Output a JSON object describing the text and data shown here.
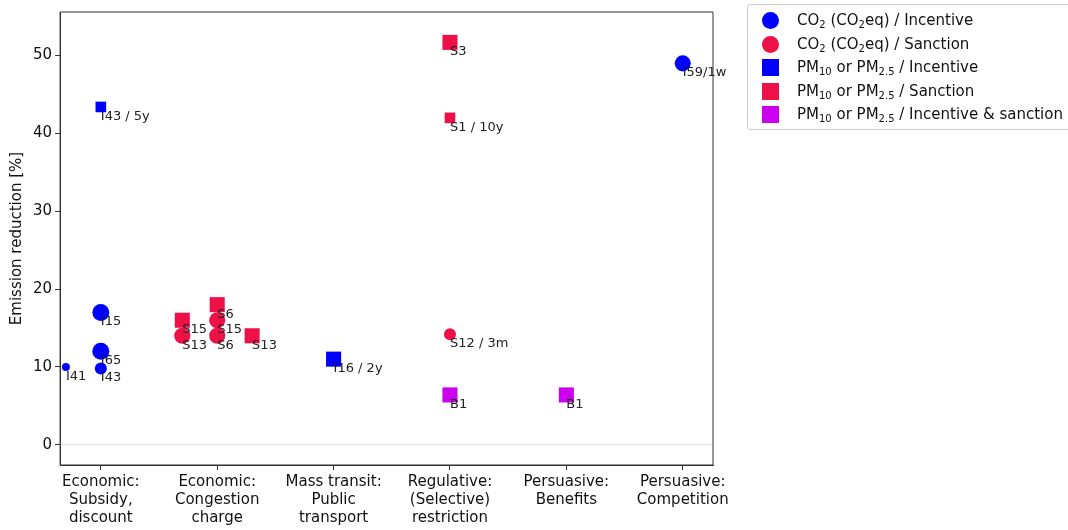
{
  "chart_data": {
    "type": "bubble",
    "categories": [
      "Economic:\nSubsidy,\ndiscount",
      "Economic:\nCongestion\ncharge",
      "Mass transit:\nPublic\ntransport",
      "Regulative:\n(Selective)\nrestriction",
      "Persuasive:\nBenefits",
      "Persuasive:\nCompetition"
    ],
    "ylabel": "Emission reduction [%]",
    "ylim": [
      -2.6,
      55.6
    ],
    "yticks": [
      0,
      10,
      20,
      30,
      40,
      50
    ],
    "grid": false,
    "legend": "top right",
    "ref_lines": [
      {
        "axis": "y",
        "value": 0,
        "color": "#e0e0e0"
      }
    ],
    "series": [
      {
        "name": "CO$_{2}$ (CO$_{2}$eq) / Incentive",
        "color": "#0000ff",
        "marker": "circle",
        "x": [
          "Economic:\nSubsidy,\ndiscount",
          "Economic:\nSubsidy,\ndiscount",
          "Economic:\nSubsidy,\ndiscount",
          "Economic:\nSubsidy,\ndiscount",
          "Persuasive:\nCompetition"
        ],
        "values": [
          17,
          12,
          9.8,
          10,
          49
        ],
        "sizes": [
          1,
          1,
          0.5,
          0.22,
          0.9
        ],
        "value_labels": [
          "I15",
          "I65",
          "I43",
          "I41",
          "I59/1w"
        ]
      },
      {
        "name": "CO$_{2}$ (CO$_{2}$eq) / Sanction",
        "color": "#ee1148",
        "marker": "circle",
        "x": [
          "Economic:\nCongestion\ncharge",
          "Economic:\nCongestion\ncharge",
          "Economic:\nCongestion\ncharge",
          "Regulative:\n(Selective)\nrestriction"
        ],
        "values": [
          16,
          14,
          14,
          14.2
        ],
        "sizes": [
          0.9,
          0.9,
          0.9,
          0.5
        ],
        "value_labels": [
          "S15",
          "S6",
          "S13",
          "S12 / 3m"
        ]
      },
      {
        "name": "PM$_{10}$ or PM$_{2.5}$ / Incentive",
        "color": "#0000ff",
        "marker": "square",
        "x": [
          "Economic:\nSubsidy,\ndiscount",
          "Mass transit:\nPublic\ntransport"
        ],
        "values": [
          43.4,
          11
        ],
        "sizes": [
          0.5,
          1
        ],
        "value_labels": [
          "I43 / 5y",
          "I16 / 2y"
        ]
      },
      {
        "name": "PM$_{10}$ or PM$_{2.5}$ / Sanction",
        "color": "#ee1148",
        "marker": "square",
        "x": [
          "Economic:\nCongestion\ncharge",
          "Economic:\nCongestion\ncharge",
          "Economic:\nCongestion\ncharge",
          "Regulative:\n(Selective)\nrestriction",
          "Regulative:\n(Selective)\nrestriction"
        ],
        "values": [
          18,
          16,
          14,
          51.7,
          42
        ],
        "sizes": [
          1,
          1,
          1,
          1,
          0.5
        ],
        "value_labels": [
          "S6",
          "S15",
          "S13",
          "S3",
          "S1 / 10y"
        ]
      },
      {
        "name": "PM$_{10}$ or PM$_{2.5}$ / Incentive & sanction",
        "color": "#cc00ee",
        "marker": "square",
        "x": [
          "Regulative:\n(Selective)\nrestriction",
          "Persuasive:\nBenefits"
        ],
        "values": [
          6.4,
          6.4
        ],
        "sizes": [
          1,
          1
        ],
        "value_labels": [
          "B1",
          "B1"
        ]
      }
    ]
  }
}
